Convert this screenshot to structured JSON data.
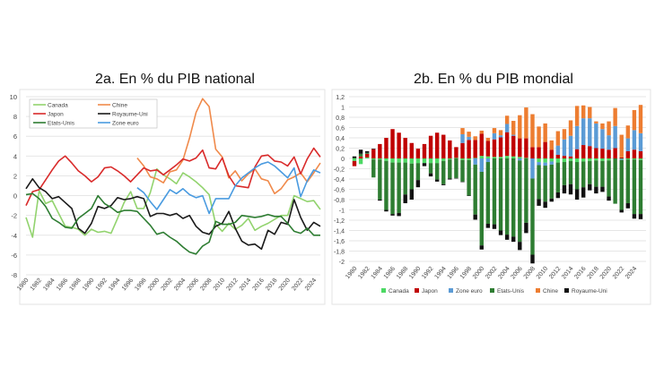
{
  "chart_data": [
    {
      "type": "line",
      "title": "2a. En % du PIB national",
      "xlabel": "",
      "ylabel": "",
      "ylim": [
        -8,
        10
      ],
      "yticks": [
        "10",
        "8",
        "6",
        "4",
        "2",
        "0",
        "-2",
        "-4",
        "-6",
        "-8"
      ],
      "ytick_values": [
        10,
        8,
        6,
        4,
        2,
        0,
        -2,
        -4,
        -6,
        -8
      ],
      "x": [
        1980,
        1981,
        1982,
        1983,
        1984,
        1985,
        1986,
        1987,
        1988,
        1989,
        1990,
        1991,
        1992,
        1993,
        1994,
        1995,
        1996,
        1997,
        1998,
        1999,
        2000,
        2001,
        2002,
        2003,
        2004,
        2005,
        2006,
        2007,
        2008,
        2009,
        2010,
        2011,
        2012,
        2013,
        2014,
        2015,
        2016,
        2017,
        2018,
        2019,
        2020,
        2021,
        2022,
        2023,
        2024,
        2025
      ],
      "xticks": [
        "1980",
        "1982",
        "1984",
        "1986",
        "1988",
        "1990",
        "1992",
        "1994",
        "1996",
        "1998",
        "2000",
        "2002",
        "2004",
        "2006",
        "2008",
        "2010",
        "2012",
        "2014",
        "2016",
        "2018",
        "2020",
        "2022",
        "2024"
      ],
      "grid": true,
      "legend_placement": "top-left",
      "series": [
        {
          "name": "Canada",
          "color": "#92d36e",
          "values": [
            -2.2,
            -4.2,
            0.5,
            -0.8,
            -0.5,
            -1.8,
            -3.1,
            -3.2,
            -3.4,
            -4.0,
            -3.4,
            -3.7,
            -3.6,
            -3.8,
            -2.3,
            -0.7,
            0.4,
            -1.3,
            -1.3,
            0.3,
            2.7,
            2.1,
            1.7,
            1.2,
            2.3,
            1.9,
            1.4,
            0.8,
            0.1,
            -2.9,
            -3.6,
            -2.8,
            -3.4,
            -3.0,
            -2.3,
            -3.5,
            -3.1,
            -2.8,
            -2.4,
            -2.0,
            -2.0,
            0.0,
            -0.3,
            -0.6,
            -0.5,
            -1.4
          ]
        },
        {
          "name": "Chine",
          "color": "#f08a4b",
          "values": [
            null,
            null,
            null,
            null,
            null,
            null,
            null,
            null,
            null,
            null,
            null,
            null,
            null,
            null,
            null,
            null,
            null,
            3.8,
            3.0,
            1.9,
            1.7,
            1.3,
            2.4,
            2.6,
            3.6,
            5.8,
            8.4,
            9.8,
            9.0,
            4.7,
            3.9,
            1.8,
            2.5,
            1.5,
            2.2,
            2.7,
            1.7,
            1.5,
            0.2,
            0.7,
            1.6,
            1.9,
            2.3,
            1.4,
            2.3,
            3.3
          ]
        },
        {
          "name": "Japon",
          "color": "#d92b2b",
          "values": [
            -1.0,
            0.4,
            0.6,
            1.6,
            2.6,
            3.5,
            4.0,
            3.3,
            2.5,
            2.0,
            1.4,
            1.9,
            2.8,
            2.9,
            2.5,
            2.0,
            1.4,
            2.1,
            2.8,
            2.5,
            2.6,
            2.1,
            2.6,
            3.1,
            3.7,
            3.5,
            3.8,
            4.6,
            2.8,
            2.7,
            3.8,
            2.0,
            1.0,
            0.9,
            0.8,
            2.9,
            4.0,
            4.1,
            3.5,
            3.4,
            3.0,
            3.9,
            2.2,
            3.7,
            4.8,
            3.9
          ]
        },
        {
          "name": "Royaume-Uni",
          "color": "#1a1a1a",
          "values": [
            0.7,
            1.7,
            0.8,
            0.4,
            -0.3,
            -0.1,
            -0.7,
            -1.3,
            -3.3,
            -3.8,
            -2.8,
            -1.1,
            -1.3,
            -1.0,
            -0.2,
            -0.4,
            -0.3,
            -0.1,
            -0.3,
            -2.1,
            -1.8,
            -1.8,
            -2.0,
            -1.8,
            -2.3,
            -2.0,
            -3.1,
            -3.7,
            -3.9,
            -3.1,
            -2.8,
            -1.6,
            -3.3,
            -4.6,
            -5.0,
            -4.9,
            -5.4,
            -3.5,
            -3.9,
            -2.7,
            -2.9,
            -0.4,
            -2.2,
            -3.5,
            -2.7,
            -3.1
          ]
        },
        {
          "name": "Etats-Unis",
          "color": "#2e7d32",
          "values": [
            0.1,
            0.2,
            -0.3,
            -1.1,
            -2.3,
            -2.7,
            -3.2,
            -3.3,
            -2.3,
            -1.8,
            -1.3,
            0.0,
            -0.8,
            -1.2,
            -1.7,
            -1.5,
            -1.5,
            -1.6,
            -2.3,
            -3.0,
            -3.9,
            -3.7,
            -4.2,
            -4.6,
            -5.2,
            -5.7,
            -5.9,
            -5.1,
            -4.7,
            -2.6,
            -2.9,
            -2.9,
            -2.7,
            -2.0,
            -2.1,
            -2.2,
            -2.1,
            -1.9,
            -2.1,
            -2.1,
            -2.8,
            -3.6,
            -3.8,
            -3.3,
            -4.0,
            -4.0
          ]
        },
        {
          "name": "Zone euro",
          "color": "#4a9be0",
          "values": [
            null,
            null,
            null,
            null,
            null,
            null,
            null,
            null,
            null,
            null,
            null,
            null,
            null,
            null,
            null,
            null,
            null,
            0.8,
            0.3,
            -0.6,
            -1.4,
            -0.4,
            0.6,
            0.2,
            0.7,
            0.1,
            -0.2,
            0.0,
            -1.8,
            -0.3,
            -0.3,
            -0.3,
            1.0,
            1.8,
            2.3,
            2.8,
            3.2,
            3.4,
            3.0,
            2.4,
            1.8,
            2.8,
            -0.1,
            1.5,
            2.6,
            2.3
          ]
        }
      ]
    },
    {
      "type": "bar",
      "stacked": true,
      "title": "2b. En % du PIB mondial",
      "xlabel": "",
      "ylabel": "",
      "ylim": [
        -2,
        1.2
      ],
      "yticks": [
        "1,2",
        "1",
        "0,8",
        "0,6",
        "0,4",
        "0,2",
        "0",
        "-0,2",
        "-0,4",
        "-0,6",
        "-0,8",
        "-1",
        "-1,2",
        "-1,4",
        "-1,6",
        "-1,8",
        "-2"
      ],
      "ytick_values": [
        1.2,
        1,
        0.8,
        0.6,
        0.4,
        0.2,
        0,
        -0.2,
        -0.4,
        -0.6,
        -0.8,
        -1,
        -1.2,
        -1.4,
        -1.6,
        -1.8,
        -2
      ],
      "x": [
        1980,
        1981,
        1982,
        1983,
        1984,
        1985,
        1986,
        1987,
        1988,
        1989,
        1990,
        1991,
        1992,
        1993,
        1994,
        1995,
        1996,
        1997,
        1998,
        1999,
        2000,
        2001,
        2002,
        2003,
        2004,
        2005,
        2006,
        2007,
        2008,
        2009,
        2010,
        2011,
        2012,
        2013,
        2014,
        2015,
        2016,
        2017,
        2018,
        2019,
        2020,
        2021,
        2022,
        2023,
        2024,
        2025
      ],
      "xticks": [
        "1980",
        "1982",
        "1984",
        "1986",
        "1988",
        "1990",
        "1992",
        "1994",
        "1996",
        "1998",
        "2000",
        "2002",
        "2004",
        "2006",
        "2008",
        "2010",
        "2012",
        "2014",
        "2016",
        "2018",
        "2020",
        "2022",
        "2024"
      ],
      "grid": true,
      "legend_placement": "bottom",
      "series": [
        {
          "name": "Canada",
          "color": "#4cd964",
          "values": [
            -0.05,
            -0.11,
            0.02,
            -0.02,
            -0.02,
            -0.05,
            -0.08,
            -0.08,
            -0.08,
            -0.1,
            -0.09,
            -0.09,
            -0.09,
            -0.09,
            -0.05,
            -0.02,
            0.01,
            -0.03,
            -0.03,
            0.01,
            0.05,
            0.04,
            0.03,
            0.03,
            0.05,
            0.04,
            0.03,
            0.01,
            0.0,
            -0.07,
            -0.08,
            -0.06,
            -0.08,
            -0.07,
            -0.05,
            -0.07,
            -0.06,
            -0.05,
            -0.04,
            -0.05,
            -0.04,
            0.0,
            -0.01,
            -0.02,
            -0.02,
            -0.03
          ]
        },
        {
          "name": "Japon",
          "color": "#c00000",
          "values": [
            -0.1,
            0.04,
            0.07,
            0.18,
            0.28,
            0.4,
            0.57,
            0.5,
            0.4,
            0.3,
            0.19,
            0.28,
            0.44,
            0.5,
            0.46,
            0.35,
            0.21,
            0.3,
            0.36,
            0.35,
            0.43,
            0.3,
            0.34,
            0.38,
            0.46,
            0.4,
            0.36,
            0.38,
            0.22,
            0.22,
            0.32,
            0.17,
            0.07,
            0.05,
            0.04,
            0.18,
            0.26,
            0.24,
            0.2,
            0.19,
            0.17,
            0.2,
            0.02,
            0.14,
            0.17,
            0.14
          ]
        },
        {
          "name": "Zone euro",
          "color": "#5b9bd5",
          "values": [
            0,
            0,
            0,
            0,
            0,
            0,
            0,
            0,
            0,
            0,
            0,
            0,
            0,
            0,
            0,
            0,
            0,
            0.17,
            0.06,
            -0.12,
            -0.26,
            -0.07,
            0.12,
            0.04,
            0.16,
            0.02,
            -0.04,
            0,
            -0.39,
            -0.06,
            -0.06,
            -0.06,
            0.18,
            0.32,
            0.4,
            0.45,
            0.52,
            0.54,
            0.48,
            0.38,
            0.28,
            0.43,
            -0.02,
            0.25,
            0.38,
            0.35
          ]
        },
        {
          "name": "Etats-Unis",
          "color": "#2e7d32",
          "values": [
            0.01,
            0.05,
            0.02,
            -0.35,
            -0.78,
            -0.95,
            -1.0,
            -0.98,
            -0.62,
            -0.5,
            -0.33,
            0.0,
            -0.2,
            -0.32,
            -0.45,
            -0.37,
            -0.38,
            -0.42,
            -0.69,
            -0.97,
            -1.43,
            -1.2,
            -1.28,
            -1.4,
            -1.48,
            -1.52,
            -1.58,
            -1.25,
            -1.48,
            -0.66,
            -0.7,
            -0.66,
            -0.58,
            -0.45,
            -0.45,
            -0.53,
            -0.5,
            -0.45,
            -0.51,
            -0.5,
            -0.7,
            -0.88,
            -0.97,
            -0.85,
            -1.06,
            -1.05
          ]
        },
        {
          "name": "Chine",
          "color": "#ed7d31",
          "values": [
            0,
            0,
            0,
            0,
            0,
            0,
            0,
            0,
            0,
            0,
            0,
            0,
            0,
            0,
            0,
            0,
            0,
            0.12,
            0.1,
            0.07,
            0.06,
            0.06,
            0.1,
            0.1,
            0.16,
            0.27,
            0.45,
            0.6,
            0.64,
            0.4,
            0.36,
            0.18,
            0.28,
            0.2,
            0.3,
            0.39,
            0.25,
            0.22,
            0.04,
            0.11,
            0.27,
            0.35,
            0.44,
            0.25,
            0.39,
            0.55
          ]
        },
        {
          "name": "Royaume-Uni",
          "color": "#111111",
          "values": [
            0.03,
            0.08,
            0.03,
            0.01,
            -0.02,
            -0.03,
            -0.03,
            -0.06,
            -0.17,
            -0.2,
            -0.14,
            -0.06,
            -0.06,
            -0.04,
            -0.02,
            -0.02,
            -0.01,
            -0.01,
            -0.01,
            -0.1,
            -0.08,
            -0.08,
            -0.09,
            -0.09,
            -0.1,
            -0.1,
            -0.16,
            -0.2,
            -0.17,
            -0.13,
            -0.12,
            -0.06,
            -0.11,
            -0.16,
            -0.2,
            -0.2,
            -0.2,
            -0.12,
            -0.13,
            -0.1,
            -0.08,
            0.0,
            -0.05,
            -0.1,
            -0.09,
            -0.1
          ]
        }
      ]
    }
  ]
}
